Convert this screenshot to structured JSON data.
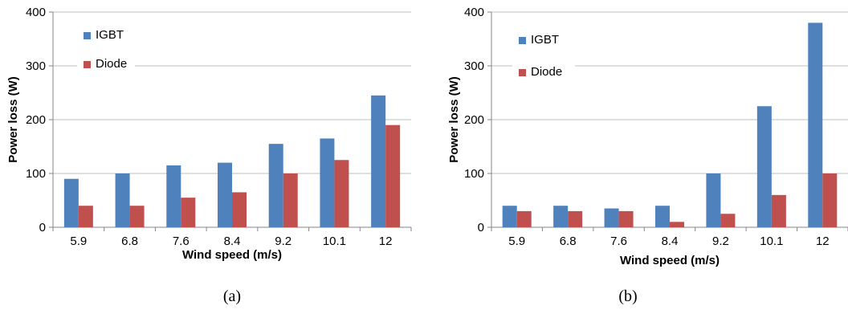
{
  "colors": {
    "igbt": "#4F81BD",
    "diode": "#C0504D",
    "grid": "#BFBFBF",
    "axis": "#868686"
  },
  "chart_data": [
    {
      "type": "bar",
      "caption": "(a)",
      "categories": [
        "5.9",
        "6.8",
        "7.6",
        "8.4",
        "9.2",
        "10.1",
        "12"
      ],
      "series": [
        {
          "name": "IGBT",
          "values": [
            90,
            100,
            115,
            120,
            155,
            165,
            245
          ]
        },
        {
          "name": "Diode",
          "values": [
            40,
            40,
            55,
            65,
            100,
            125,
            190
          ]
        }
      ],
      "xlabel": "Wind speed (m/s)",
      "ylabel": "Power loss (W)",
      "ylim": [
        0,
        400
      ],
      "yticks": [
        "0",
        "100",
        "200",
        "300",
        "400"
      ],
      "grid": true,
      "legend_position": "top-left"
    },
    {
      "type": "bar",
      "caption": "(b)",
      "categories": [
        "5.9",
        "6.8",
        "7.6",
        "8.4",
        "9.2",
        "10.1",
        "12"
      ],
      "series": [
        {
          "name": "IGBT",
          "values": [
            40,
            40,
            35,
            40,
            100,
            225,
            380
          ]
        },
        {
          "name": "Diode",
          "values": [
            30,
            30,
            30,
            10,
            25,
            60,
            100
          ]
        }
      ],
      "xlabel": "Wind speed (m/s)",
      "ylabel": "Power loss (W)",
      "ylim": [
        0,
        400
      ],
      "yticks": [
        "0",
        "100",
        "200",
        "300",
        "400"
      ],
      "grid": true,
      "legend_position": "top-left"
    }
  ]
}
